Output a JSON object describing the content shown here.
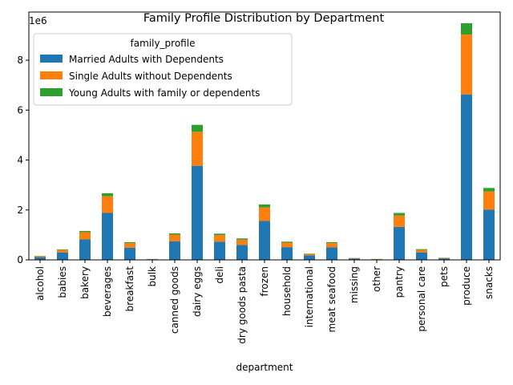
{
  "chart_data": {
    "type": "bar",
    "stacked": true,
    "title": "Family Profile Distribution by Department",
    "xlabel": "department",
    "ylabel": "",
    "y_multiplier_label": "1e6",
    "ylim": [
      0,
      9.93
    ],
    "yticks": [
      0,
      2,
      4,
      6,
      8
    ],
    "grid": false,
    "legend": {
      "title": "family_profile",
      "placement": "top-left"
    },
    "categories": [
      "alcohol",
      "babies",
      "bakery",
      "beverages",
      "breakfast",
      "bulk",
      "canned goods",
      "dairy eggs",
      "deli",
      "dry goods pasta",
      "frozen",
      "household",
      "international",
      "meat seafood",
      "missing",
      "other",
      "pantry",
      "personal care",
      "pets",
      "produce",
      "snacks"
    ],
    "series": [
      {
        "name": "Married Adults with Dependents",
        "color": "#1f77b4",
        "values": [
          0.11,
          0.3,
          0.82,
          1.88,
          0.49,
          0.025,
          0.74,
          3.77,
          0.73,
          0.6,
          1.56,
          0.51,
          0.18,
          0.5,
          0.05,
          0.025,
          1.32,
          0.3,
          0.06,
          6.63,
          2.01
        ]
      },
      {
        "name": "Single Adults without Dependents",
        "color": "#ff7f0e",
        "values": [
          0.04,
          0.1,
          0.29,
          0.67,
          0.18,
          0.01,
          0.27,
          1.36,
          0.26,
          0.21,
          0.54,
          0.18,
          0.06,
          0.17,
          0.02,
          0.01,
          0.46,
          0.1,
          0.02,
          2.4,
          0.73
        ]
      },
      {
        "name": "Young Adults with family or dependents",
        "color": "#2ca02c",
        "values": [
          0.01,
          0.02,
          0.05,
          0.12,
          0.04,
          0.003,
          0.05,
          0.28,
          0.06,
          0.05,
          0.12,
          0.04,
          0.01,
          0.04,
          0.005,
          0.002,
          0.1,
          0.03,
          0.005,
          0.45,
          0.14
        ]
      }
    ]
  }
}
